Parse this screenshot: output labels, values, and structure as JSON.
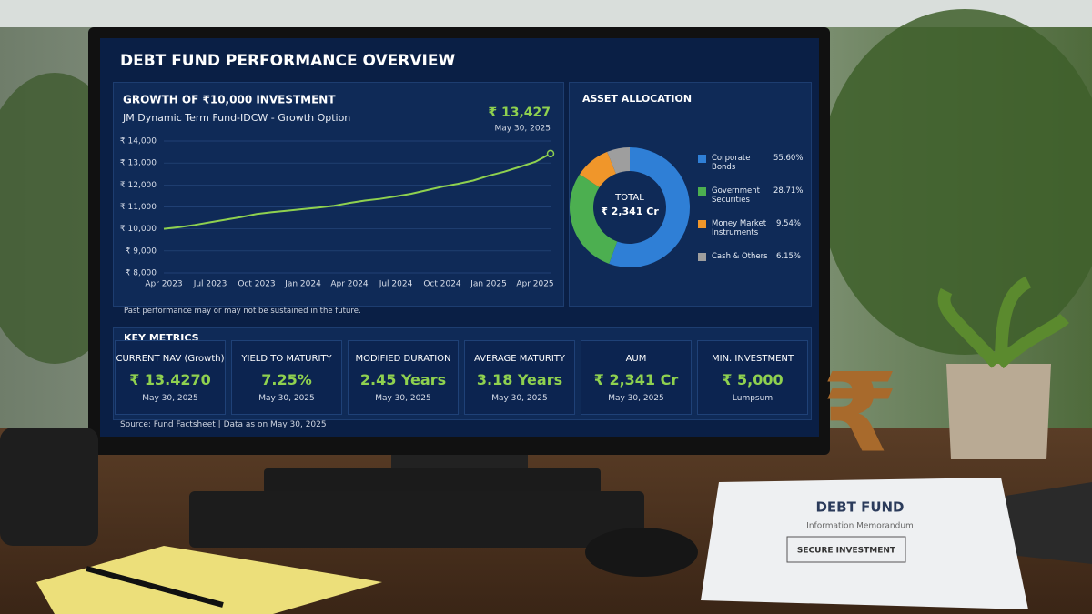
{
  "dashboard": {
    "title": "DEBT FUND PERFORMANCE OVERVIEW",
    "footnote": "Past performance may or may not be sustained in the future.",
    "metrics_title": "KEY METRICS",
    "metrics": [
      {
        "label": "CURRENT NAV (Growth)",
        "value": "₹ 13.4270",
        "sub": "May 30, 2025"
      },
      {
        "label": "YIELD TO MATURITY",
        "value": "7.25%",
        "sub": "May 30, 2025"
      },
      {
        "label": "MODIFIED DURATION",
        "value": "2.45 Years",
        "sub": "May 30, 2025"
      },
      {
        "label": "AVERAGE MATURITY",
        "value": "3.18 Years",
        "sub": "May 30, 2025"
      },
      {
        "label": "AUM",
        "value": "₹ 2,341 Cr",
        "sub": "May 30, 2025"
      },
      {
        "label": "MIN. INVESTMENT",
        "value": "₹ 5,000",
        "sub": "Lumpsum"
      }
    ],
    "source": "Source: Fund Factsheet | Data as on May 30, 2025"
  },
  "chart_data": [
    {
      "type": "line",
      "title": "GROWTH OF ₹10,000 INVESTMENT",
      "subtitle": "JM Dynamic Term Fund-IDCW - Growth Option",
      "end_label": "₹ 13,427",
      "end_date": "May 30, 2025",
      "categories": [
        "Apr 2023",
        null,
        null,
        "Jul 2023",
        null,
        null,
        "Oct 2023",
        null,
        null,
        "Jan 2024",
        null,
        null,
        "Apr 2024",
        null,
        null,
        "Jul 2024",
        null,
        null,
        "Oct 2024",
        null,
        null,
        "Jan 2025",
        null,
        null,
        "Apr 2025",
        null
      ],
      "values": [
        10000,
        10080,
        10180,
        10300,
        10420,
        10540,
        10680,
        10760,
        10830,
        10900,
        10970,
        11050,
        11180,
        11290,
        11370,
        11480,
        11600,
        11760,
        11920,
        12050,
        12200,
        12420,
        12600,
        12820,
        13050,
        13427
      ],
      "color": "#8fd14f",
      "ylim": [
        8000,
        14000
      ],
      "yticks": [
        {
          "value": 8000,
          "label": "₹ 8,000"
        },
        {
          "value": 9000,
          "label": "₹ 9,000"
        },
        {
          "value": 10000,
          "label": "₹ 10,000"
        },
        {
          "value": 11000,
          "label": "₹ 11,000"
        },
        {
          "value": 12000,
          "label": "₹ 12,000"
        },
        {
          "value": 13000,
          "label": "₹ 13,000"
        },
        {
          "value": 14000,
          "label": "₹ 14,000"
        }
      ],
      "grid": true
    },
    {
      "type": "pie",
      "title": "ASSET ALLOCATION",
      "center_title": "TOTAL",
      "center_value": "₹ 2,341 Cr",
      "categories": [
        "Corporate Bonds",
        "Government Securities",
        "Money Market Instruments",
        "Cash & Others"
      ],
      "values": [
        55.6,
        28.71,
        9.54,
        6.15
      ],
      "value_labels": [
        "55.60%",
        "28.71%",
        "9.54%",
        "6.15%"
      ],
      "colors": [
        "#2f7fd6",
        "#4caf50",
        "#f0962a",
        "#9e9e9e"
      ],
      "donut": true
    }
  ],
  "desk": {
    "symbol": "₹",
    "document_title": "DEBT FUND",
    "document_subtitle": "Information Memorandum",
    "document_badge": "SECURE INVESTMENT"
  }
}
